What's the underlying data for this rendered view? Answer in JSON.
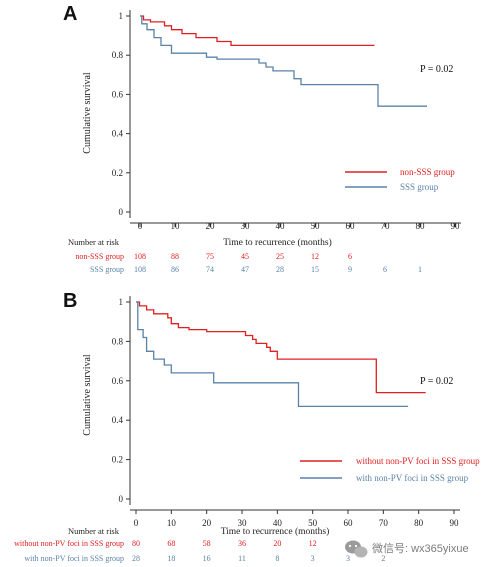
{
  "colors": {
    "red": "#e02020",
    "blue": "#5a82a8",
    "axis": "#333333",
    "text": "#222222"
  },
  "watermark": {
    "icon": "wechat-icon",
    "text": "微信号: wx365yixue"
  },
  "chart_data": [
    {
      "type": "line",
      "panel_label": "A",
      "ylabel": "Cumulative survival",
      "xlabel": "Time to recurrence (months)",
      "xlim": [
        0,
        90
      ],
      "ylim": [
        0,
        1.0
      ],
      "xticks": [
        "0",
        "10",
        "20",
        "30",
        "40",
        "50",
        "60",
        "70",
        "80",
        "90"
      ],
      "yticks": [
        "0",
        "0.2",
        "0.4",
        "0.6",
        "0.8",
        "1"
      ],
      "p_value": "P = 0.02",
      "legend_position": "bottom-right",
      "series": [
        {
          "name": "non-SSS group",
          "color": "#e02020",
          "points": [
            [
              0,
              1.0
            ],
            [
              1,
              1.0
            ],
            [
              1,
              0.98
            ],
            [
              3,
              0.98
            ],
            [
              3,
              0.97
            ],
            [
              7,
              0.97
            ],
            [
              7,
              0.95
            ],
            [
              9,
              0.95
            ],
            [
              9,
              0.93
            ],
            [
              12,
              0.93
            ],
            [
              12,
              0.91
            ],
            [
              16,
              0.91
            ],
            [
              16,
              0.89
            ],
            [
              22,
              0.89
            ],
            [
              22,
              0.87
            ],
            [
              26,
              0.87
            ],
            [
              26,
              0.85
            ],
            [
              67,
              0.85
            ]
          ]
        },
        {
          "name": "SSS group",
          "color": "#5a82a8",
          "points": [
            [
              0,
              1.0
            ],
            [
              0.5,
              1.0
            ],
            [
              0.5,
              0.96
            ],
            [
              2,
              0.96
            ],
            [
              2,
              0.93
            ],
            [
              4,
              0.93
            ],
            [
              4,
              0.89
            ],
            [
              6,
              0.89
            ],
            [
              6,
              0.85
            ],
            [
              9,
              0.85
            ],
            [
              9,
              0.81
            ],
            [
              19,
              0.81
            ],
            [
              19,
              0.79
            ],
            [
              22,
              0.79
            ],
            [
              22,
              0.78
            ],
            [
              34,
              0.78
            ],
            [
              34,
              0.76
            ],
            [
              36,
              0.76
            ],
            [
              36,
              0.74
            ],
            [
              38,
              0.74
            ],
            [
              38,
              0.72
            ],
            [
              44,
              0.72
            ],
            [
              44,
              0.68
            ],
            [
              46,
              0.68
            ],
            [
              46,
              0.65
            ],
            [
              68,
              0.65
            ],
            [
              68,
              0.54
            ],
            [
              82,
              0.54
            ]
          ]
        }
      ],
      "risk_table": {
        "header": "Number at risk",
        "rows": [
          {
            "label": "non-SSS group",
            "color": "#e02020",
            "values": [
              "108",
              "88",
              "75",
              "45",
              "25",
              "12",
              "6"
            ]
          },
          {
            "label": "SSS group",
            "color": "#5a82a8",
            "values": [
              "108",
              "86",
              "74",
              "47",
              "28",
              "15",
              "9",
              "6",
              "1"
            ]
          }
        ]
      }
    },
    {
      "type": "line",
      "panel_label": "B",
      "ylabel": "Cumulative survival",
      "xlabel": "Time to recurrence (months)",
      "xlim": [
        0,
        90
      ],
      "ylim": [
        0,
        1.0
      ],
      "xticks": [
        "0",
        "10",
        "20",
        "30",
        "40",
        "50",
        "60",
        "70",
        "80",
        "90"
      ],
      "yticks": [
        "0",
        "0.2",
        "0.4",
        "0.6",
        "0.8",
        "1"
      ],
      "p_value": "P = 0.02",
      "legend_position": "bottom-right",
      "series": [
        {
          "name": "without non-PV foci in SSS group",
          "color": "#e02020",
          "points": [
            [
              0,
              1.0
            ],
            [
              1,
              1.0
            ],
            [
              1,
              0.98
            ],
            [
              3,
              0.98
            ],
            [
              3,
              0.96
            ],
            [
              5,
              0.96
            ],
            [
              5,
              0.94
            ],
            [
              9,
              0.94
            ],
            [
              9,
              0.92
            ],
            [
              10,
              0.92
            ],
            [
              10,
              0.89
            ],
            [
              12,
              0.89
            ],
            [
              12,
              0.87
            ],
            [
              15,
              0.87
            ],
            [
              15,
              0.86
            ],
            [
              20,
              0.86
            ],
            [
              20,
              0.85
            ],
            [
              31,
              0.85
            ],
            [
              31,
              0.83
            ],
            [
              33,
              0.83
            ],
            [
              33,
              0.81
            ],
            [
              34,
              0.81
            ],
            [
              34,
              0.79
            ],
            [
              37,
              0.79
            ],
            [
              37,
              0.77
            ],
            [
              38,
              0.77
            ],
            [
              38,
              0.75
            ],
            [
              40,
              0.75
            ],
            [
              40,
              0.71
            ],
            [
              68,
              0.71
            ],
            [
              68,
              0.54
            ],
            [
              82,
              0.54
            ]
          ]
        },
        {
          "name": "with non-PV foci in SSS group",
          "color": "#5a82a8",
          "points": [
            [
              0,
              1.0
            ],
            [
              0.5,
              1.0
            ],
            [
              0.5,
              0.86
            ],
            [
              2,
              0.86
            ],
            [
              2,
              0.82
            ],
            [
              3,
              0.82
            ],
            [
              3,
              0.75
            ],
            [
              5,
              0.75
            ],
            [
              5,
              0.71
            ],
            [
              8,
              0.71
            ],
            [
              8,
              0.68
            ],
            [
              10,
              0.68
            ],
            [
              10,
              0.64
            ],
            [
              22,
              0.64
            ],
            [
              22,
              0.59
            ],
            [
              46,
              0.59
            ],
            [
              46,
              0.47
            ],
            [
              77,
              0.47
            ]
          ]
        }
      ],
      "risk_table": {
        "header": "Number at risk",
        "rows": [
          {
            "label": "without non-PV foci in SSS group",
            "color": "#e02020",
            "values": [
              "80",
              "68",
              "58",
              "36",
              "20",
              "12"
            ]
          },
          {
            "label": "with non-PV foci in SSS group",
            "color": "#5a82a8",
            "values": [
              "28",
              "18",
              "16",
              "11",
              "8",
              "3",
              "3",
              "2"
            ]
          }
        ]
      }
    }
  ]
}
